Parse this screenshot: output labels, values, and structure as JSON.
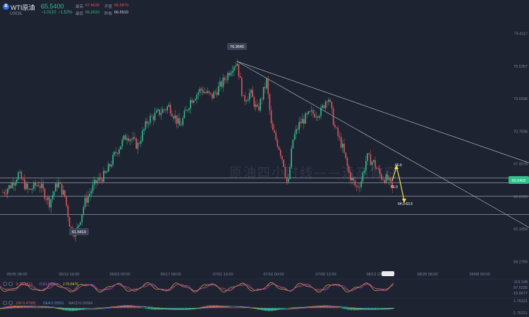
{
  "header": {
    "logo": "B",
    "symbol_name": "WTI原油",
    "caret": "▾",
    "symbol_code": "USOIL",
    "last_price": "65.5400",
    "change": "−1.0110",
    "change_pct": "−1.52%",
    "high_label": "最高",
    "high_value": "67.4630",
    "open_label": "开盘",
    "open_value": "66.5870",
    "low_label": "最低",
    "low_value": "65.2610",
    "prev_label": "昨收",
    "prev_value": "66.5510",
    "colors": {
      "up": "#2fbf8a",
      "down": "#e0555c",
      "bg": "#1e2332"
    }
  },
  "chart_data": {
    "type": "candlestick",
    "y_ticks": [
      "79.4117",
      "76.5357",
      "73.6598",
      "70.7838",
      "67.9078",
      "65.0318",
      "62.1559",
      "59.2799"
    ],
    "x_ticks": [
      "05/05 08:00",
      "05/19 16:00",
      "06/03 00:00",
      "06/17 08:00",
      "07/01 16:00",
      "07/16 00:00",
      "07/30 12:00",
      "08/13 20:00",
      "08/28 08:00",
      "09/08 00:00"
    ],
    "ylim": [
      58.5,
      80.5
    ],
    "last_price": 65.54,
    "annotations": {
      "high": "76.9540",
      "low": "61.5410",
      "upper_target": "66.6",
      "mid_target": "65.0",
      "lower_target": "64.0-63.5"
    },
    "horizontal_levels": [
      66.65,
      66.25,
      65.05,
      63.45
    ],
    "trendlines": [
      {
        "from": [
          "07/01",
          76.95
        ],
        "to": [
          "09/10",
          68.0
        ]
      },
      {
        "from": [
          "07/01",
          76.95
        ],
        "to": [
          "09/10",
          62.3
        ]
      }
    ],
    "watermark": "原油四小时线——逢高做空"
  },
  "indicators": {
    "kdj": {
      "k_label": "K:78.1813",
      "d_label": "D:81.8466",
      "j_label": "J:70.8476",
      "axis": [
        "119.199",
        "97.5335",
        "-15.8677"
      ]
    },
    "macd": {
      "dif_label": "DIF:0.47985",
      "dea_label": "DEA:0.25551",
      "macd_label": "MACD:0.28364",
      "axis": [
        "1.76221",
        "-1.76221"
      ]
    }
  }
}
